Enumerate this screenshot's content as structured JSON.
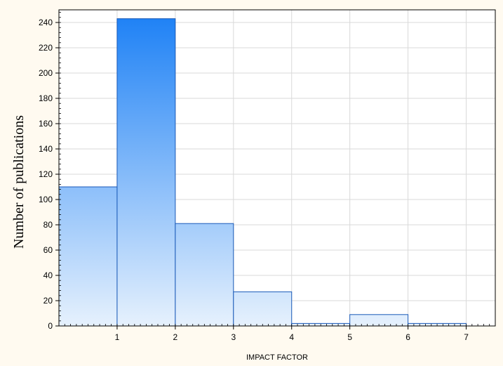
{
  "chart_data": {
    "type": "bar",
    "subtype": "histogram",
    "xlabel": "IMPACT FACTOR",
    "ylabel": "Number of publications",
    "xlim": [
      0,
      7.5
    ],
    "ylim": [
      0,
      250
    ],
    "xticks": [
      1,
      2,
      3,
      4,
      5,
      6,
      7
    ],
    "yticks": [
      0,
      20,
      40,
      60,
      80,
      100,
      120,
      140,
      160,
      180,
      200,
      220,
      240
    ],
    "bins": [
      {
        "start": 0,
        "end": 1,
        "value": 110
      },
      {
        "start": 1,
        "end": 2,
        "value": 243
      },
      {
        "start": 2,
        "end": 3,
        "value": 81
      },
      {
        "start": 3,
        "end": 4,
        "value": 27
      },
      {
        "start": 4,
        "end": 5,
        "value": 2
      },
      {
        "start": 5,
        "end": 6,
        "value": 9
      },
      {
        "start": 6,
        "end": 7,
        "value": 2
      }
    ],
    "grid": true,
    "colors": {
      "bar_top": "#1a7ff5",
      "bar_bottom": "#e6f1fd",
      "bar_edge": "#1a5ab8",
      "frame_background": "#fffaf0",
      "grid": "#d9d9d9"
    }
  }
}
